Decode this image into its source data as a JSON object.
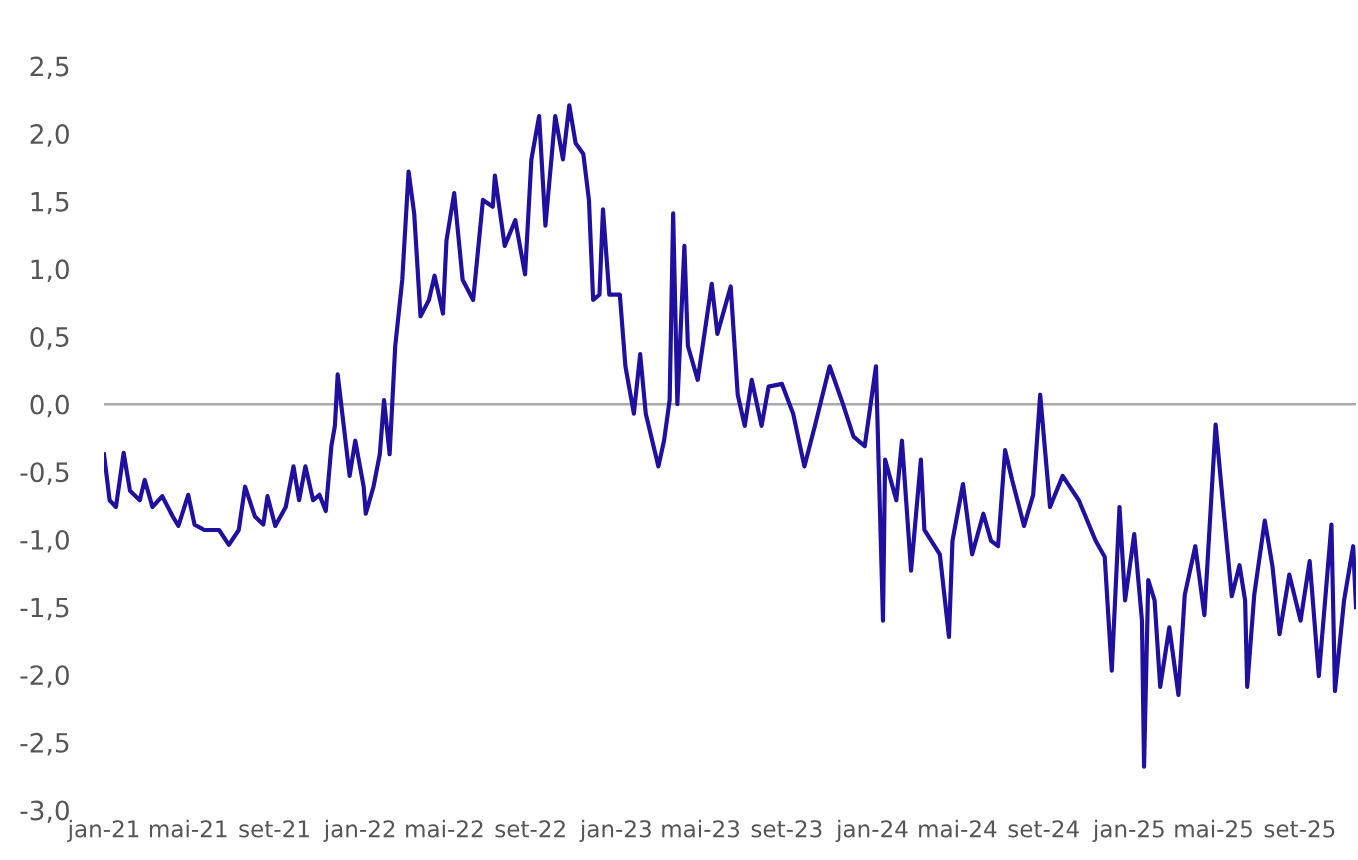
{
  "chart_data": {
    "type": "line",
    "x": [
      "2021-01-01",
      "2021-01-09",
      "2021-01-18",
      "2021-01-29",
      "2021-02-07",
      "2021-02-21",
      "2021-02-28",
      "2021-03-11",
      "2021-03-25",
      "2021-04-09",
      "2021-04-17",
      "2021-05-01",
      "2021-05-10",
      "2021-05-24",
      "2021-06-14",
      "2021-06-28",
      "2021-07-12",
      "2021-07-21",
      "2021-08-04",
      "2021-08-16",
      "2021-08-22",
      "2021-09-02",
      "2021-09-17",
      "2021-09-28",
      "2021-10-06",
      "2021-10-15",
      "2021-10-26",
      "2021-11-04",
      "2021-11-13",
      "2021-11-21",
      "2021-11-26",
      "2021-11-30",
      "2021-12-17",
      "2021-12-25",
      "2022-01-06",
      "2022-01-09",
      "2022-01-20",
      "2022-01-29",
      "2022-02-04",
      "2022-02-12",
      "2022-02-20",
      "2022-03-02",
      "2022-03-11",
      "2022-03-19",
      "2022-03-28",
      "2022-04-09",
      "2022-04-17",
      "2022-04-29",
      "2022-05-04",
      "2022-05-15",
      "2022-05-27",
      "2022-06-11",
      "2022-06-25",
      "2022-07-09",
      "2022-07-12",
      "2022-07-26",
      "2022-08-10",
      "2022-08-24",
      "2022-09-02",
      "2022-09-13",
      "2022-09-22",
      "2022-10-06",
      "2022-10-17",
      "2022-10-26",
      "2022-11-04",
      "2022-11-15",
      "2022-11-23",
      "2022-11-29",
      "2022-12-08",
      "2022-12-13",
      "2022-12-22",
      "2023-01-06",
      "2023-01-14",
      "2023-01-26",
      "2023-02-04",
      "2023-02-12",
      "2023-03-02",
      "2023-03-10",
      "2023-03-18",
      "2023-03-23",
      "2023-03-29",
      "2023-04-08",
      "2023-04-13",
      "2023-04-27",
      "2023-05-17",
      "2023-05-25",
      "2023-06-13",
      "2023-06-23",
      "2023-07-03",
      "2023-07-13",
      "2023-07-27",
      "2023-08-06",
      "2023-08-25",
      "2023-09-10",
      "2023-09-26",
      "2023-10-11",
      "2023-11-01",
      "2023-11-20",
      "2023-12-05",
      "2023-12-21",
      "2024-01-06",
      "2024-01-16",
      "2024-01-19",
      "2024-02-04",
      "2024-02-12",
      "2024-02-25",
      "2024-03-10",
      "2024-03-15",
      "2024-04-06",
      "2024-04-19",
      "2024-04-24",
      "2024-05-09",
      "2024-05-22",
      "2024-06-07",
      "2024-06-18",
      "2024-06-28",
      "2024-07-08",
      "2024-07-18",
      "2024-08-04",
      "2024-08-17",
      "2024-08-27",
      "2024-09-10",
      "2024-09-28",
      "2024-10-21",
      "2024-11-14",
      "2024-11-27",
      "2024-12-02",
      "2024-12-07",
      "2024-12-18",
      "2024-12-26",
      "2025-01-08",
      "2025-01-19",
      "2025-01-22",
      "2025-01-28",
      "2025-02-06",
      "2025-02-14",
      "2025-02-27",
      "2025-03-12",
      "2025-03-21",
      "2025-04-05",
      "2025-04-18",
      "2025-05-04",
      "2025-05-14",
      "2025-05-27",
      "2025-06-07",
      "2025-06-15",
      "2025-06-18",
      "2025-06-28",
      "2025-07-13",
      "2025-07-24",
      "2025-08-03",
      "2025-08-17",
      "2025-09-02",
      "2025-09-15",
      "2025-09-28",
      "2025-10-16",
      "2025-10-21",
      "2025-11-03",
      "2025-11-16",
      "2025-11-20"
    ],
    "series": [
      {
        "color": "#2010a0",
        "values": [
          -0.37,
          -0.71,
          -0.76,
          -0.36,
          -0.64,
          -0.71,
          -0.56,
          -0.76,
          -0.68,
          -0.83,
          -0.9,
          -0.67,
          -0.89,
          -0.93,
          -0.93,
          -1.04,
          -0.93,
          -0.61,
          -0.83,
          -0.89,
          -0.68,
          -0.9,
          -0.76,
          -0.46,
          -0.71,
          -0.46,
          -0.71,
          -0.67,
          -0.79,
          -0.31,
          -0.16,
          0.22,
          -0.53,
          -0.27,
          -0.61,
          -0.81,
          -0.61,
          -0.37,
          0.03,
          -0.37,
          0.43,
          0.92,
          1.72,
          1.41,
          0.65,
          0.77,
          0.95,
          0.67,
          1.21,
          1.56,
          0.92,
          0.77,
          1.51,
          1.46,
          1.69,
          1.17,
          1.36,
          0.96,
          1.81,
          2.13,
          1.32,
          2.13,
          1.81,
          2.21,
          1.93,
          1.85,
          1.51,
          0.77,
          0.81,
          1.44,
          0.81,
          0.81,
          0.28,
          -0.07,
          0.37,
          -0.07,
          -0.46,
          -0.27,
          0.03,
          1.41,
          0.0,
          1.17,
          0.43,
          0.18,
          0.89,
          0.52,
          0.87,
          0.07,
          -0.16,
          0.18,
          -0.16,
          0.13,
          0.15,
          -0.07,
          -0.46,
          -0.16,
          0.28,
          0.0,
          -0.24,
          -0.31,
          0.28,
          -1.6,
          -0.41,
          -0.71,
          -0.27,
          -1.23,
          -0.41,
          -0.93,
          -1.11,
          -1.72,
          -1.01,
          -0.59,
          -1.11,
          -0.81,
          -1.01,
          -1.05,
          -0.34,
          -0.56,
          -0.9,
          -0.67,
          0.07,
          -0.76,
          -0.53,
          -0.71,
          -1.01,
          -1.13,
          -1.56,
          -1.97,
          -0.76,
          -1.45,
          -0.96,
          -1.6,
          -2.68,
          -1.3,
          -1.45,
          -2.09,
          -1.65,
          -2.15,
          -1.41,
          -1.05,
          -1.56,
          -0.15,
          -0.71,
          -1.42,
          -1.19,
          -1.45,
          -2.09,
          -1.41,
          -0.86,
          -1.2,
          -1.7,
          -1.26,
          -1.6,
          -1.16,
          -2.01,
          -0.89,
          -2.12,
          -1.45,
          -1.05,
          -1.5
        ]
      }
    ],
    "xlim": [
      "2021-01-01",
      "2025-11-20"
    ],
    "xticks": [
      {
        "value": "2021-01-01",
        "label": "jan-21"
      },
      {
        "value": "2021-05-01",
        "label": "mai-21"
      },
      {
        "value": "2021-09-01",
        "label": "set-21"
      },
      {
        "value": "2022-01-01",
        "label": "jan-22"
      },
      {
        "value": "2022-05-01",
        "label": "mai-22"
      },
      {
        "value": "2022-09-01",
        "label": "set-22"
      },
      {
        "value": "2023-01-01",
        "label": "jan-23"
      },
      {
        "value": "2023-05-01",
        "label": "mai-23"
      },
      {
        "value": "2023-09-01",
        "label": "set-23"
      },
      {
        "value": "2024-01-01",
        "label": "jan-24"
      },
      {
        "value": "2024-05-01",
        "label": "mai-24"
      },
      {
        "value": "2024-09-01",
        "label": "set-24"
      },
      {
        "value": "2025-01-01",
        "label": "jan-25"
      },
      {
        "value": "2025-05-01",
        "label": "mai-25"
      },
      {
        "value": "2025-09-01",
        "label": "set-25"
      }
    ],
    "ylim": [
      -3.0,
      2.5
    ],
    "yticks": [
      {
        "value": -3.0,
        "label": "-3,0"
      },
      {
        "value": -2.5,
        "label": "-2,5"
      },
      {
        "value": -2.0,
        "label": "-2,0"
      },
      {
        "value": -1.5,
        "label": "-1,5"
      },
      {
        "value": -1.0,
        "label": "-1,0"
      },
      {
        "value": -0.5,
        "label": "-0,5"
      },
      {
        "value": 0.0,
        "label": "0,0"
      },
      {
        "value": 0.5,
        "label": "0,5"
      },
      {
        "value": 1.0,
        "label": "1,0"
      },
      {
        "value": 1.5,
        "label": "1,5"
      },
      {
        "value": 2.0,
        "label": "2,0"
      },
      {
        "value": 2.5,
        "label": "2,5"
      }
    ],
    "ref_lines": [
      {
        "axis": "y",
        "value": 0,
        "color": "#aaaaaa"
      }
    ],
    "marker": "none",
    "line_style": "solid"
  }
}
